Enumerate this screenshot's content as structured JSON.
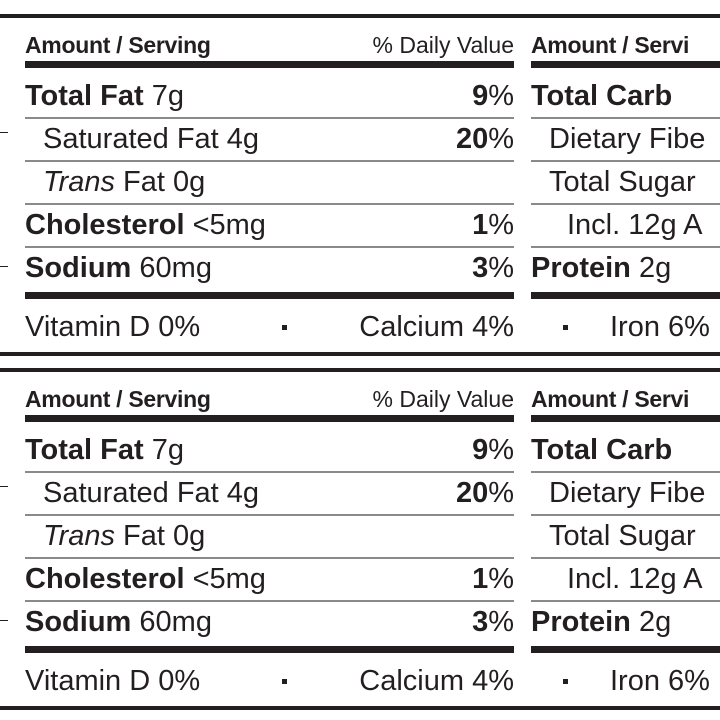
{
  "panels": [
    {
      "left": {
        "header_amount": "Amount / Serving",
        "header_dv": "% Daily Value",
        "rows": [
          {
            "name": "Total Fat",
            "amount": " 7g",
            "dv_num": "9",
            "dv_pct": "%"
          },
          {
            "name": "Saturated Fat 4g",
            "amount": "",
            "dv_num": "20",
            "dv_pct": "%"
          },
          {
            "name_italic": "Trans",
            "name_rest": " Fat 0g"
          },
          {
            "name": "Cholesterol",
            "amount": " <5mg",
            "dv_num": "1",
            "dv_pct": "%"
          },
          {
            "name": "Sodium",
            "amount": " 60mg",
            "dv_num": "3",
            "dv_pct": "%"
          }
        ],
        "vitamin_d": "Vitamin D 0%",
        "calcium": "Calcium 4%"
      },
      "right": {
        "header_amount": "Amount / Servi",
        "rows": [
          {
            "name": "Total Carb"
          },
          {
            "name": "Dietary Fibe"
          },
          {
            "name": "Total Sugar"
          },
          {
            "name": "Incl. 12g A"
          },
          {
            "name": "Protein",
            "amount": " 2g"
          }
        ],
        "iron": "Iron 6%"
      }
    },
    {
      "left": {
        "header_amount": "Amount / Serving",
        "header_dv": "% Daily Value",
        "rows": [
          {
            "name": "Total Fat",
            "amount": " 7g",
            "dv_num": "9",
            "dv_pct": "%"
          },
          {
            "name": "Saturated Fat 4g",
            "amount": "",
            "dv_num": "20",
            "dv_pct": "%"
          },
          {
            "name_italic": "Trans",
            "name_rest": " Fat 0g"
          },
          {
            "name": "Cholesterol",
            "amount": " <5mg",
            "dv_num": "1",
            "dv_pct": "%"
          },
          {
            "name": "Sodium",
            "amount": " 60mg",
            "dv_num": "3",
            "dv_pct": "%"
          }
        ],
        "vitamin_d": "Vitamin D 0%",
        "calcium": "Calcium 4%"
      },
      "right": {
        "header_amount": "Amount / Servi",
        "rows": [
          {
            "name": "Total Carb"
          },
          {
            "name": "Dietary Fibe"
          },
          {
            "name": "Total Sugar"
          },
          {
            "name": "Incl. 12g A"
          },
          {
            "name": "Protein",
            "amount": " 2g"
          }
        ],
        "iron": "Iron 6%"
      }
    }
  ],
  "edge_glyph": "0",
  "colors": {
    "ink": "#231f20",
    "rule": "#8a8a8a",
    "background": "#ffffff"
  }
}
